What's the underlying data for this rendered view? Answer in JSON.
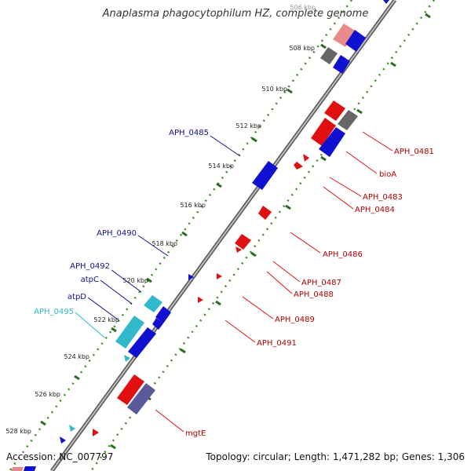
{
  "title": "Anaplasma phagocytophilum HZ, complete genome",
  "footer": {
    "accession": "Accession: NC_007797",
    "summary": "Topology: circular; Length: 1,471,282 bp; Genes: 1,306"
  },
  "colors": {
    "backbone": "#8a8a8a",
    "tick": "#3c8a2a",
    "minus_strand": "#e01010",
    "plus_strand": "#1010d0",
    "trna": "#2fb9c9",
    "dark_gene": "#5a5a9a",
    "pseudo_gray": "#666666",
    "pink_gene": "#e88a8a",
    "label_red": "#b00000",
    "label_blue": "#10108c",
    "label_cyan": "#2fb9c9"
  },
  "ticks": [
    "506 kbp",
    "508 kbp",
    "510 kbp",
    "512 kbp",
    "514 kbp",
    "516 kbp",
    "518 kbp",
    "520 kbp",
    "522 kbp",
    "524 kbp",
    "526 kbp",
    "528 kbp"
  ],
  "right_labels": [
    "APH_0481",
    "bioA",
    "APH_0483",
    "APH_0484",
    "APH_0486",
    "APH_0487",
    "APH_0488",
    "APH_0489",
    "APH_0491",
    "mgtE"
  ],
  "left_labels": [
    "APH_0485",
    "APH_0490",
    "APH_0492",
    "atpC",
    "atpD",
    "APH_0495"
  ]
}
